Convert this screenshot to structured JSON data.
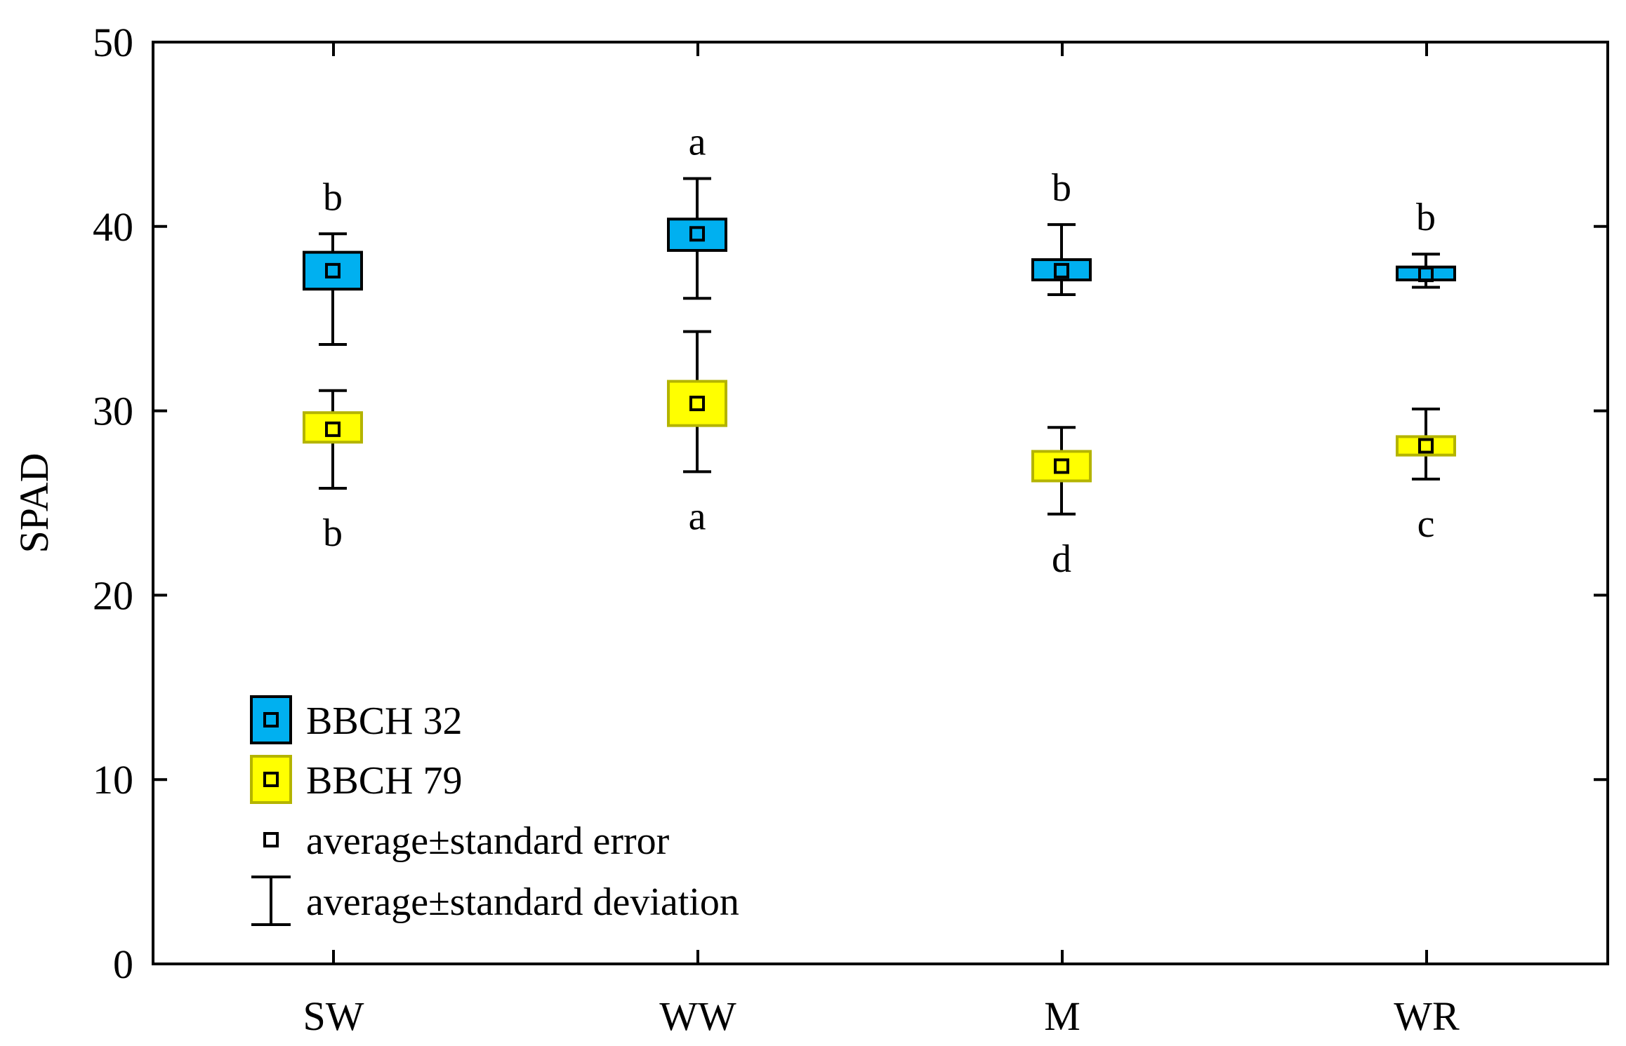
{
  "chart_data": {
    "type": "box",
    "title": "",
    "xlabel": "",
    "ylabel": "SPAD",
    "ylim": [
      0,
      50
    ],
    "yticks": [
      0,
      10,
      20,
      30,
      40,
      50
    ],
    "categories": [
      "SW",
      "WW",
      "M",
      "WR"
    ],
    "series": [
      {
        "name": "BBCH 32",
        "color": "#00b0f0",
        "border_color": "#000000",
        "mean": [
          37.6,
          39.6,
          37.6,
          37.4
        ],
        "se_low": [
          36.6,
          38.7,
          37.1,
          37.1
        ],
        "se_high": [
          38.6,
          40.4,
          38.2,
          37.8
        ],
        "sd_low": [
          33.6,
          36.1,
          36.3,
          36.7
        ],
        "sd_high": [
          39.6,
          42.6,
          40.1,
          38.5
        ],
        "letters": [
          "b",
          "a",
          "b",
          "b"
        ],
        "letter_position": "above"
      },
      {
        "name": "BBCH 79",
        "color": "#ffff00",
        "border_color": "#b4b400",
        "mean": [
          29.0,
          30.4,
          27.0,
          28.1
        ],
        "se_low": [
          28.3,
          29.2,
          26.2,
          27.6
        ],
        "se_high": [
          29.9,
          31.6,
          27.8,
          28.6
        ],
        "sd_low": [
          25.8,
          26.7,
          24.4,
          26.3
        ],
        "sd_high": [
          31.1,
          34.3,
          29.1,
          30.1
        ],
        "letters": [
          "b",
          "a",
          "d",
          "c"
        ],
        "letter_position": "below"
      }
    ],
    "legend": {
      "position": "lower-left",
      "entries": [
        "BBCH 32",
        "BBCH 79",
        "average±standard error",
        "average±standard deviation"
      ]
    }
  }
}
